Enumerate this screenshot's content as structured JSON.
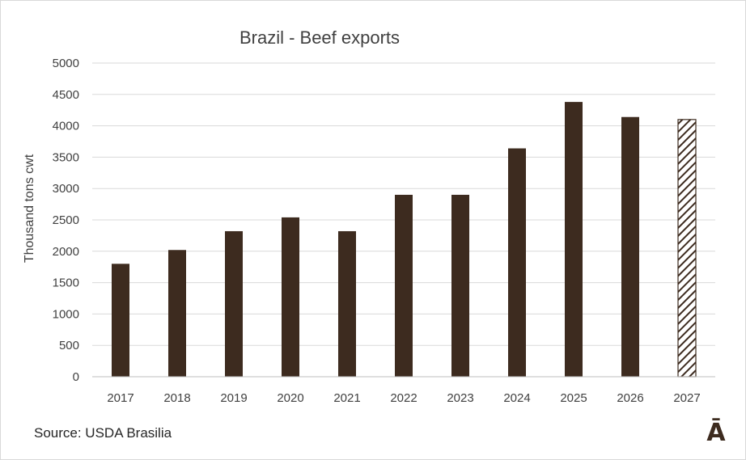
{
  "chart_data": {
    "type": "bar",
    "title": "Brazil - Beef exports",
    "ylabel": "Thousand tons cwt",
    "xlabel": "",
    "categories": [
      "2017",
      "2018",
      "2019",
      "2020",
      "2021",
      "2022",
      "2023",
      "2024",
      "2025",
      "2026",
      "2027"
    ],
    "values": [
      1800,
      2020,
      2320,
      2540,
      2320,
      2900,
      2900,
      3640,
      4380,
      4140,
      4100
    ],
    "forecast_categories": [
      "2027"
    ],
    "ylim": [
      0,
      5000
    ],
    "yticks": [
      "0",
      "500",
      "1000",
      "1500",
      "2000",
      "2500",
      "3000",
      "3500",
      "4000",
      "4500",
      "5000"
    ],
    "grid": true,
    "legend": "none",
    "colors": {
      "bar": "#3d2b1f",
      "grid": "#d9d9d9",
      "forecast_hatch": "#3d2b1f"
    }
  },
  "footer": {
    "source": "Source: USDA Brasilia",
    "logo": "Ā"
  }
}
